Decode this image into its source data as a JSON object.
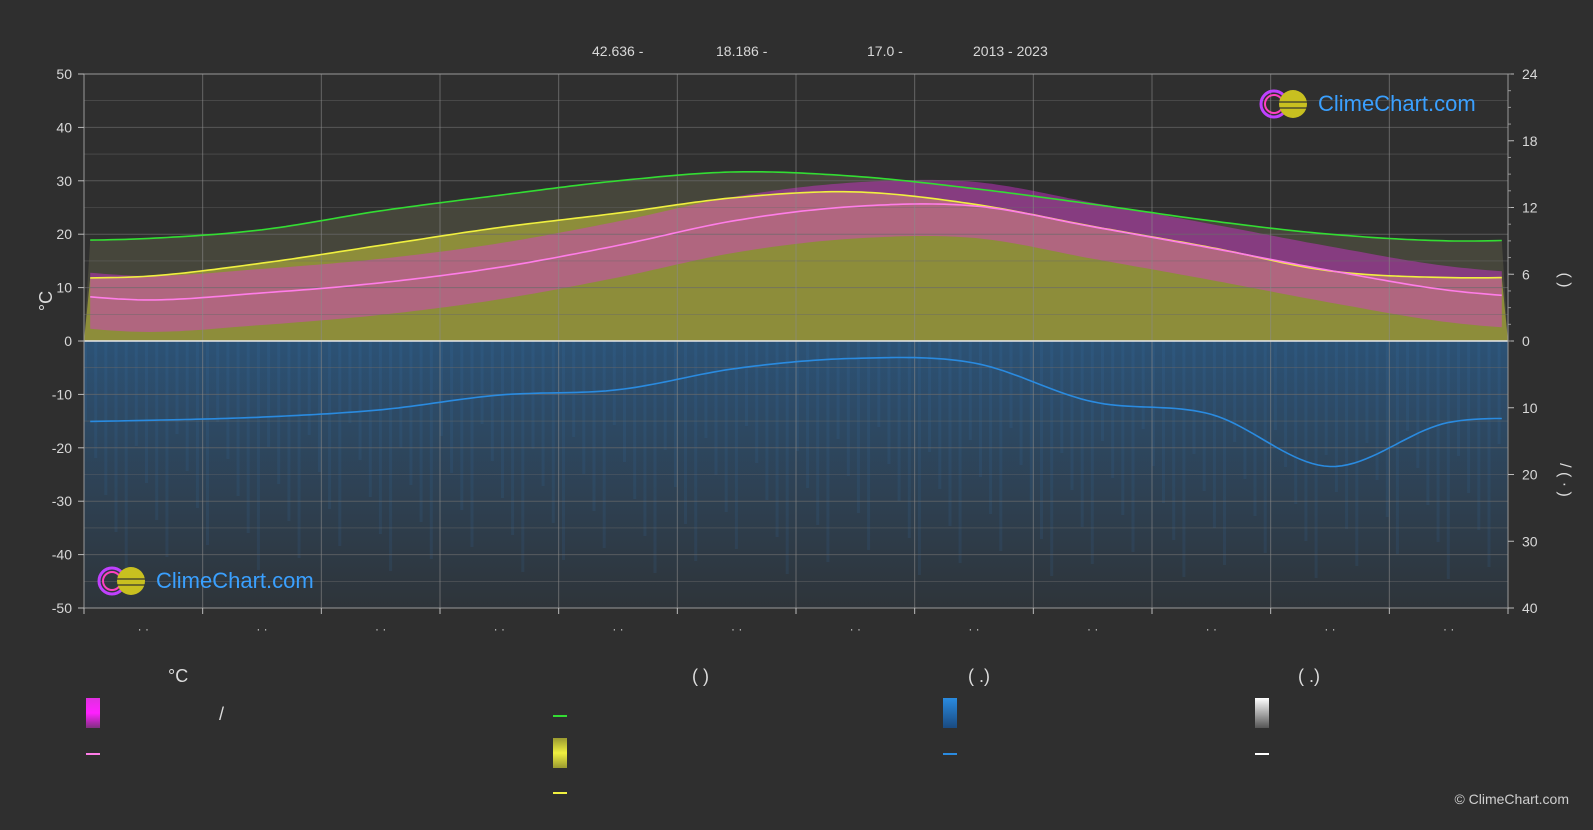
{
  "header": {
    "lat": "42.636 -",
    "lon": "18.186 -",
    "elevation": "17.0 -",
    "years": "2013 - 2023"
  },
  "logo": {
    "text": "ClimeChart.com"
  },
  "copyright": "© ClimeChart.com",
  "axes": {
    "left_unit": "°C",
    "right_top_label": "(     )",
    "right_bottom_label": "/     (  ·  )"
  },
  "legend": {
    "col1_header": "°C",
    "col1_row1_sep": "/",
    "col2_header": "(          )",
    "col3_header": "(   .)",
    "col4_header": "(   .)"
  },
  "colors": {
    "background": "#2f2f2f",
    "temp_band": "#e030e0",
    "temp_line": "#ff7de8",
    "daylight_line": "#33dd33",
    "sunshine_band": "#c8c83a",
    "sunshine_line": "#f0f040",
    "precip_band": "#2a6fb0",
    "precip_line": "#2a8be0",
    "snow": "#ffffff",
    "grid": "#6a6a6a"
  },
  "chart_data": {
    "type": "line",
    "x_ticks": [
      "· ·",
      "· ·",
      "· ·",
      "· ·",
      "· ·",
      "· ·",
      "· ·",
      "· ·",
      "· ·",
      "· ·",
      "· ·",
      "· ·"
    ],
    "left_axis": {
      "unit": "°C",
      "range": [
        -50,
        50
      ],
      "ticks": [
        50,
        40,
        30,
        20,
        10,
        0,
        -10,
        -20,
        -30,
        -40,
        -50
      ]
    },
    "right_axis_top": {
      "range": [
        0,
        24
      ],
      "ticks": [
        24,
        18,
        12,
        6,
        0
      ]
    },
    "right_axis_bottom": {
      "range": [
        0,
        40
      ],
      "ticks": [
        0,
        10,
        20,
        30,
        40
      ]
    },
    "grid": true,
    "series": [
      {
        "role": "daylight_hours",
        "color": "#33dd33",
        "values": [
          9.2,
          10.0,
          11.7,
          13.1,
          14.4,
          15.2,
          14.8,
          13.7,
          12.3,
          10.8,
          9.6,
          9.0
        ]
      },
      {
        "role": "sunshine_hours",
        "color": "#f0f040",
        "values": [
          5.8,
          7.0,
          8.6,
          10.2,
          11.5,
          12.9,
          13.4,
          12.3,
          10.3,
          8.4,
          6.3,
          5.7
        ]
      },
      {
        "role": "mean_temperature_c",
        "color": "#ff7de8",
        "values": [
          7.7,
          9.0,
          10.9,
          13.8,
          17.9,
          22.6,
          25.2,
          25.3,
          21.4,
          17.4,
          13.2,
          9.5
        ]
      },
      {
        "role": "monthly_precipitation_mm",
        "color": "#2a8be0",
        "values": [
          11.9,
          11.4,
          10.3,
          8.1,
          7.3,
          4.1,
          2.6,
          3.3,
          9.1,
          11.0,
          18.8,
          12.2
        ]
      }
    ]
  }
}
